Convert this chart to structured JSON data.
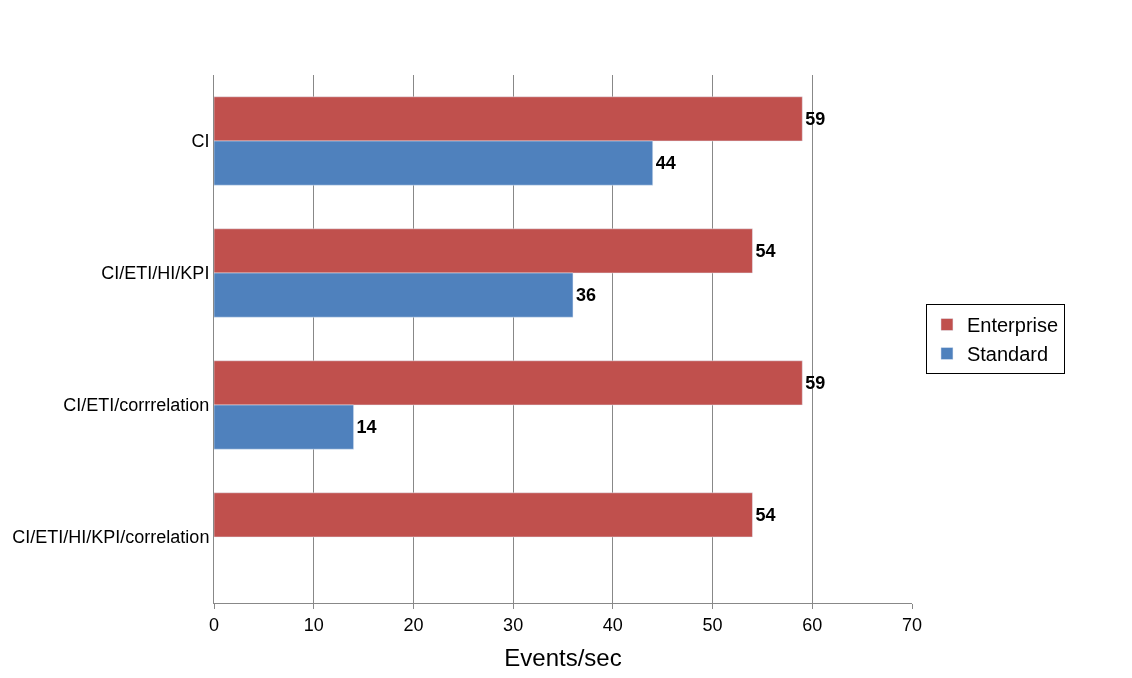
{
  "chart_data": {
    "type": "bar",
    "orientation": "horizontal",
    "xlabel": "Events/sec",
    "categories": [
      "CI",
      "CI/ETI/HI/KPI",
      "CI/ETI/corrrelation",
      "CI/ETI/HI/KPI/correlation"
    ],
    "series": [
      {
        "name": "Enterprise",
        "color": "#c0504d",
        "values": [
          59,
          54,
          59,
          54
        ]
      },
      {
        "name": "Standard",
        "color": "#4f81bd",
        "values": [
          44,
          36,
          14,
          null
        ]
      }
    ],
    "xlim": [
      0,
      70
    ],
    "xticks": [
      0,
      10,
      20,
      30,
      40,
      50,
      60,
      70
    ],
    "grid": "x",
    "legend": "right",
    "data_labels": true
  }
}
